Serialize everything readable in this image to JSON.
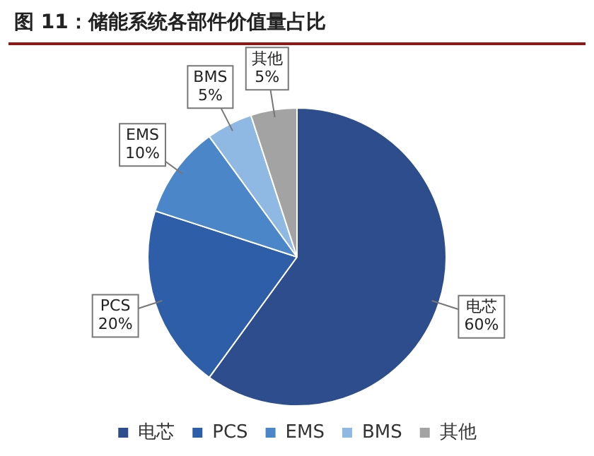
{
  "chart_data": {
    "type": "pie",
    "title": "图 11：储能系统各部件价值量占比",
    "categories": [
      "电芯",
      "PCS",
      "EMS",
      "BMS",
      "其他"
    ],
    "values": [
      60,
      20,
      10,
      5,
      5
    ],
    "value_labels": [
      "60%",
      "20%",
      "10%",
      "5%",
      "5%"
    ],
    "colors": [
      "#2e4d8c",
      "#2f5ea8",
      "#4a86c8",
      "#8fb9e2",
      "#a3a3a3"
    ],
    "legend": "bottom"
  }
}
